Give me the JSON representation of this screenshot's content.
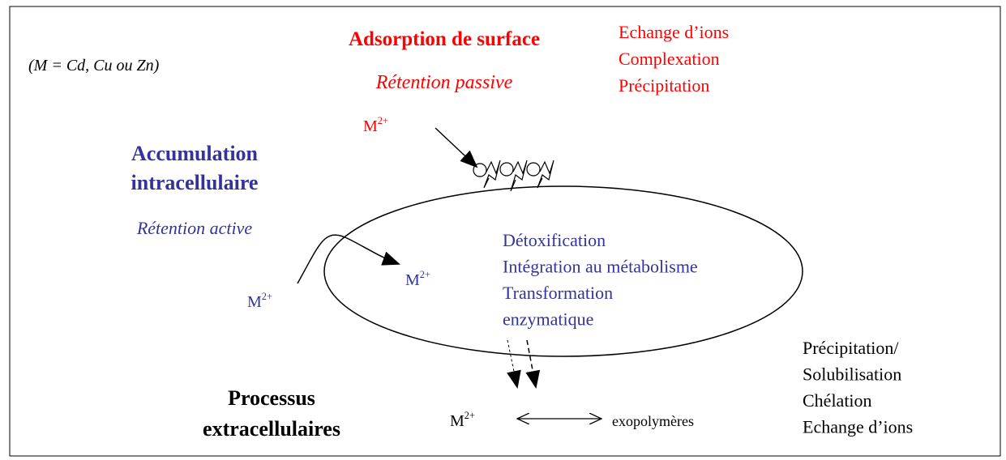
{
  "note": "(M = Cd, Cu ou Zn)",
  "ion": {
    "symbol": "M",
    "charge": "2+"
  },
  "surface": {
    "title": "Adsorption de surface",
    "subtitle": "Rétention passive",
    "mechanisms": [
      "Echange d’ions",
      "Complexation",
      "Précipitation"
    ]
  },
  "intracellular": {
    "title": [
      "Accumulation",
      "intracellulaire"
    ],
    "subtitle": "Rétention active",
    "processes": [
      "Détoxification",
      "Intégration au métabolisme",
      "Transformation",
      "enzymatique"
    ]
  },
  "extracellular": {
    "title": [
      "Processus",
      "extracellulaires"
    ],
    "partner": "exopolymères",
    "mechanisms": [
      "Précipitation/",
      "Solubilisation",
      "Chélation",
      "Echange d’ions"
    ]
  }
}
